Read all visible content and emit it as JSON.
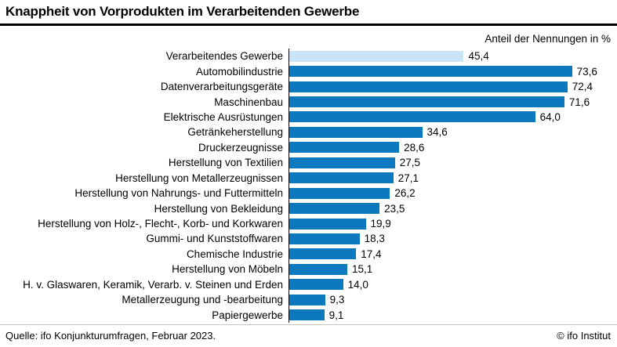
{
  "header": {
    "title": "Knappheit von Vorprodukten im Verarbeitenden Gewerbe",
    "unit_label": "Anteil der Nennungen in %"
  },
  "footer": {
    "source": "Quelle: ifo Konjunkturumfragen, Februar 2023.",
    "copyright": "© ifo Institut"
  },
  "chart_data": {
    "type": "bar",
    "orientation": "horizontal",
    "title": "Knappheit von Vorprodukten im Verarbeitenden Gewerbe",
    "unit_label": "Anteil der Nennungen in %",
    "categories": [
      "Verarbeitendes Gewerbe",
      "Automobilindustrie",
      "Datenverarbeitungsgeräte",
      "Maschinenbau",
      "Elektrische Ausrüstungen",
      "Getränkeherstellung",
      "Druckerzeugnisse",
      "Herstellung von Textilien",
      "Herstellung von Metallerzeugnissen",
      "Herstellung von Nahrungs- und Futtermitteln",
      "Herstellung von Bekleidung",
      "Herstellung von Holz-, Flecht-, Korb- und Korkwaren",
      "Gummi- und Kunststoffwaren",
      "Chemische Industrie",
      "Herstellung von Möbeln",
      "H. v. Glaswaren, Keramik, Verarb. v. Steinen und Erden",
      "Metallerzeugung und -bearbeitung",
      "Papiergewerbe"
    ],
    "values": [
      45.4,
      73.6,
      72.4,
      71.6,
      64.0,
      34.6,
      28.6,
      27.5,
      27.1,
      26.2,
      23.5,
      19.9,
      18.3,
      17.4,
      15.1,
      14.0,
      9.3,
      9.1
    ],
    "value_labels": [
      "45,4",
      "73,6",
      "72,4",
      "71,6",
      "64,0",
      "34,6",
      "28,6",
      "27,5",
      "27,1",
      "26,2",
      "23,5",
      "19,9",
      "18,3",
      "17,4",
      "15,1",
      "14,0",
      "9,3",
      "9,1"
    ],
    "xlim": [
      0,
      80
    ],
    "grid": false,
    "legend": false,
    "highlight_index": 0,
    "bar_color": "#0c78be",
    "highlight_color": "#c9e3f7"
  }
}
